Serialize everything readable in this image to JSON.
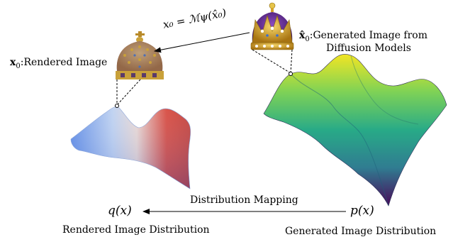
{
  "labels": {
    "rendered_image_symbol": "x",
    "rendered_image_subscript": "0",
    "rendered_image_text": ":Rendered Image",
    "generated_image_symbol": "x̂",
    "generated_image_subscript": "0",
    "generated_image_text_line1": ":Generated Image from",
    "generated_image_text_line2": "Diffusion Models",
    "mapping_equation": "x₀ = ℳψ(x̂₀)",
    "distribution_mapping": "Distribution Mapping",
    "q_x": "q(x)",
    "p_x": "p(x)",
    "rendered_distribution": "Rendered Image Distribution",
    "generated_distribution": "Generated Image Distribution"
  },
  "colors": {
    "rendered_surface_low": "#4f7fe0",
    "rendered_surface_high": "#c8322a",
    "generated_surface_low": "#3b0f5a",
    "generated_surface_mid": "#1f9a8a",
    "generated_surface_high": "#f5e21e",
    "crown_gold": "#d4a32a",
    "crown_purple": "#5b2a86"
  },
  "icons": {
    "rendered_crown": "crown-rendered-icon",
    "generated_crown": "crown-generated-icon"
  }
}
